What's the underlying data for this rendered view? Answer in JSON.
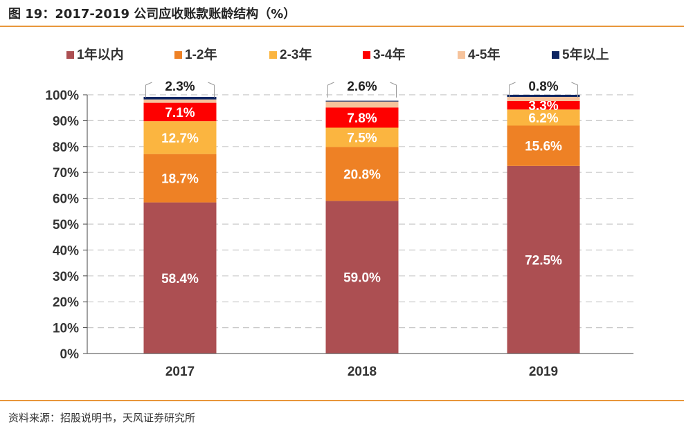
{
  "header": {
    "title": "图 19：2017-2019 公司应收账款账龄结构（%）"
  },
  "footer": {
    "source": "资料来源：招股说明书，天风证券研究所"
  },
  "chart_data": {
    "type": "bar",
    "stacked": true,
    "categories": [
      "2017",
      "2018",
      "2019"
    ],
    "series": [
      {
        "name": "1年以内",
        "color": "#ac4f52",
        "values": [
          58.4,
          59.0,
          72.5
        ],
        "labels": [
          "58.4%",
          "59.0%",
          "72.5%"
        ]
      },
      {
        "name": "1-2年",
        "color": "#ee8125",
        "values": [
          18.7,
          20.8,
          15.6
        ],
        "labels": [
          "18.7%",
          "20.8%",
          "15.6%"
        ]
      },
      {
        "name": "2-3年",
        "color": "#fbb540",
        "values": [
          12.7,
          7.5,
          6.2
        ],
        "labels": [
          "12.7%",
          "7.5%",
          "6.2%"
        ]
      },
      {
        "name": "3-4年",
        "color": "#fe0000",
        "values": [
          7.1,
          7.8,
          3.3
        ],
        "labels": [
          "7.1%",
          "7.8%",
          "3.3%"
        ]
      },
      {
        "name": "4-5年",
        "color": "#f6c39c",
        "values": [
          1.3,
          2.3,
          1.6
        ],
        "labels": [
          "",
          "",
          ""
        ]
      },
      {
        "name": "5年以上",
        "color": "#0c2461",
        "values": [
          1.0,
          0.3,
          0.8
        ],
        "labels": [
          "",
          "",
          ""
        ]
      }
    ],
    "callouts": [
      "2.3%",
      "2.6%",
      "0.8%"
    ],
    "yticks": [
      "0%",
      "10%",
      "20%",
      "30%",
      "40%",
      "50%",
      "60%",
      "70%",
      "80%",
      "90%",
      "100%"
    ],
    "ylim": [
      0,
      100
    ],
    "grid": true,
    "legend": "top"
  }
}
